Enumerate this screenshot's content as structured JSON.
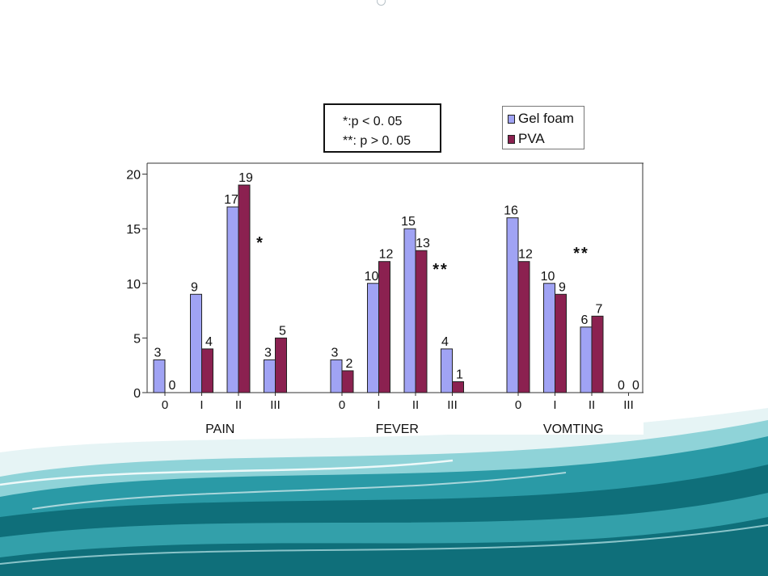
{
  "colors": {
    "gel_foam": "#a0a3f4",
    "pva": "#8b2150",
    "teal_dark": "#0f6f7a",
    "teal_mid": "#2a9aa6",
    "teal_light": "#8fd3d8"
  },
  "significance_box": {
    "line1": "*:p < 0. 05",
    "line2": "**: p > 0. 05"
  },
  "legend": {
    "items": [
      {
        "label": "Gel foam",
        "color": "#a0a3f4"
      },
      {
        "label": "PVA",
        "color": "#8b2150"
      }
    ]
  },
  "chart_data": {
    "type": "bar",
    "grid": false,
    "legend_position": "top-right",
    "ylim": [
      0,
      21
    ],
    "yticks": [
      0,
      5,
      10,
      15,
      20
    ],
    "groups": [
      {
        "label": "PAIN",
        "categories": [
          "0",
          "I",
          "II",
          "III"
        ],
        "series": [
          {
            "name": "Gel foam",
            "values": [
              3,
              9,
              17,
              3
            ]
          },
          {
            "name": "PVA",
            "values": [
              0,
              4,
              19,
              5
            ]
          }
        ],
        "annotation": "*"
      },
      {
        "label": "FEVER",
        "categories": [
          "0",
          "I",
          "II",
          "III"
        ],
        "series": [
          {
            "name": "Gel foam",
            "values": [
              3,
              10,
              15,
              4
            ]
          },
          {
            "name": "PVA",
            "values": [
              2,
              12,
              13,
              1
            ]
          }
        ],
        "annotation": "**"
      },
      {
        "label": "VOMTING",
        "categories": [
          "0",
          "I",
          "II",
          "III"
        ],
        "series": [
          {
            "name": "Gel foam",
            "values": [
              16,
              10,
              6,
              0
            ]
          },
          {
            "name": "PVA",
            "values": [
              12,
              9,
              7,
              0
            ]
          }
        ],
        "annotation": "**"
      }
    ]
  }
}
